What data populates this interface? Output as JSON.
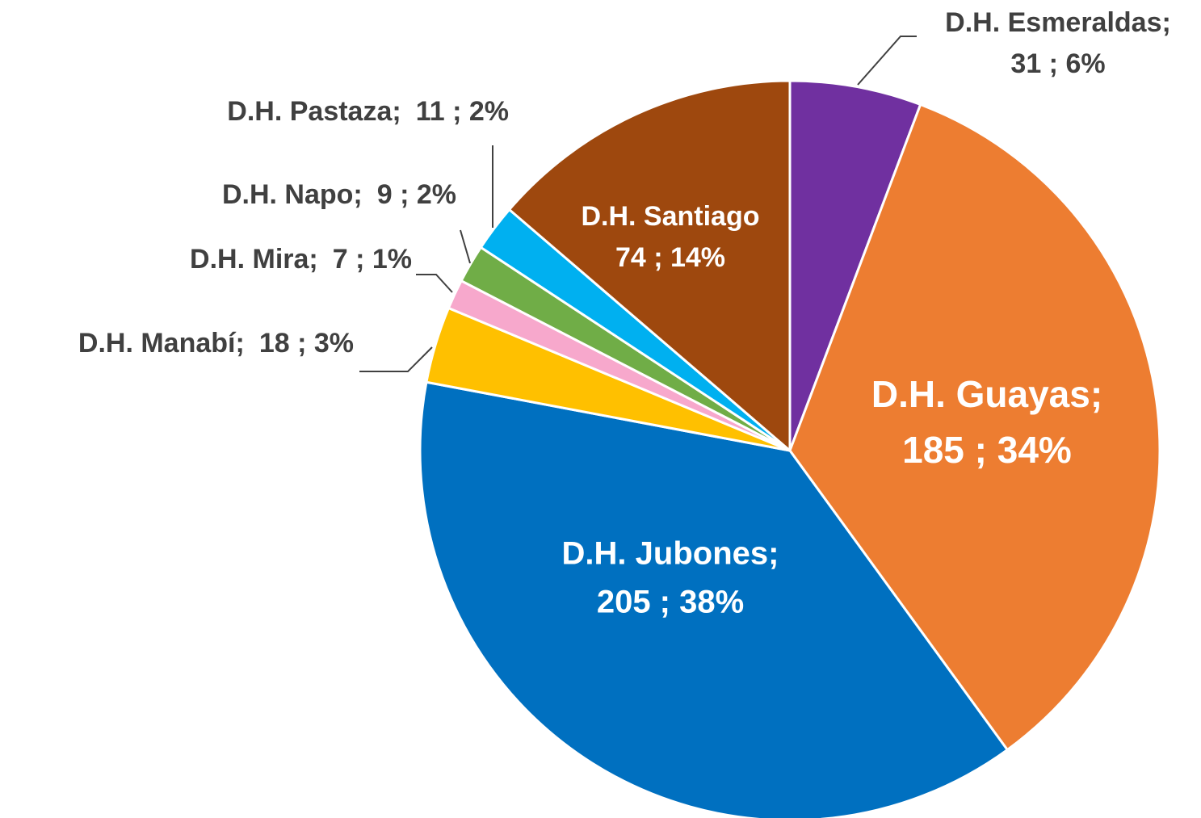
{
  "chart_data": {
    "type": "pie",
    "categories": [
      "D.H. Esmeraldas;",
      "D.H. Guayas;",
      "D.H. Jubones;",
      "D.H. Manabí;",
      "D.H. Mira;",
      "D.H. Napo;",
      "D.H. Pastaza;",
      "D.H. Santiago"
    ],
    "values": [
      31,
      185,
      205,
      18,
      7,
      9,
      11,
      74
    ],
    "value_labels": [
      "31 ; 6%",
      "185 ; 34%",
      "205 ; 38%",
      "18 ; 3%",
      "7 ; 1%",
      "9 ; 2%",
      "11 ; 2%",
      "74 ; 14%"
    ],
    "colors": [
      "#7030a0",
      "#ed7d31",
      "#0070c0",
      "#ffc000",
      "#f7a8cc",
      "#70ad47",
      "#00b0f0",
      "#9e480e"
    ]
  }
}
